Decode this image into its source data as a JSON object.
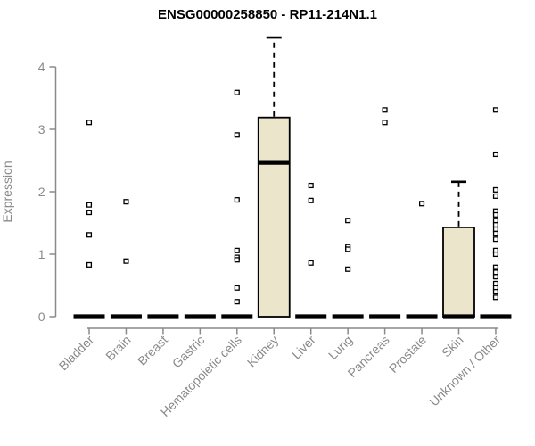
{
  "chart_data": {
    "type": "boxplot",
    "title": "ENSG00000258850 - RP11-214N1.1",
    "ylabel": "Expression",
    "xlabel": "",
    "ylim": [
      0,
      4.5
    ],
    "yticks": [
      0,
      1,
      2,
      3,
      4
    ],
    "grid": false,
    "legend": false,
    "colors": {
      "box_fill": "#EAE5CB",
      "box_border": "#000000",
      "median": "#000000",
      "whisker": "#000000",
      "outlier_fill": "#ffffff",
      "outlier_border": "#000000",
      "axis": "#8a8a8a",
      "title": "#000000"
    },
    "categories": [
      "Bladder",
      "Brain",
      "Breast",
      "Gastric",
      "Hematopoietic cells",
      "Kidney",
      "Liver",
      "Lung",
      "Pancreas",
      "Prostate",
      "Skin",
      "Unknown / Other"
    ],
    "boxes": [
      {
        "category": "Bladder",
        "q1": 0,
        "median": 0,
        "q3": 0,
        "whisker_low": 0,
        "whisker_high": 0,
        "outliers": [
          3.11,
          1.79,
          1.67,
          1.31,
          0.83
        ]
      },
      {
        "category": "Brain",
        "q1": 0,
        "median": 0,
        "q3": 0,
        "whisker_low": 0,
        "whisker_high": 0,
        "outliers": [
          1.84,
          0.89
        ]
      },
      {
        "category": "Breast",
        "q1": 0,
        "median": 0,
        "q3": 0,
        "whisker_low": 0,
        "whisker_high": 0,
        "outliers": []
      },
      {
        "category": "Gastric",
        "q1": 0,
        "median": 0,
        "q3": 0,
        "whisker_low": 0,
        "whisker_high": 0,
        "outliers": []
      },
      {
        "category": "Hematopoietic cells",
        "q1": 0,
        "median": 0,
        "q3": 0,
        "whisker_low": 0,
        "whisker_high": 0,
        "outliers": [
          3.59,
          2.91,
          1.87,
          1.06,
          0.95,
          0.91,
          0.46,
          0.24
        ]
      },
      {
        "category": "Kidney",
        "q1": 0,
        "median": 2.47,
        "q3": 3.19,
        "whisker_low": 0,
        "whisker_high": 4.47,
        "outliers": []
      },
      {
        "category": "Liver",
        "q1": 0,
        "median": 0,
        "q3": 0,
        "whisker_low": 0,
        "whisker_high": 0,
        "outliers": [
          2.1,
          1.86,
          0.86
        ]
      },
      {
        "category": "Lung",
        "q1": 0,
        "median": 0,
        "q3": 0,
        "whisker_low": 0,
        "whisker_high": 0,
        "outliers": [
          1.54,
          1.12,
          1.08,
          0.76
        ]
      },
      {
        "category": "Pancreas",
        "q1": 0,
        "median": 0,
        "q3": 0,
        "whisker_low": 0,
        "whisker_high": 0,
        "outliers": [
          3.31,
          3.11
        ]
      },
      {
        "category": "Prostate",
        "q1": 0,
        "median": 0,
        "q3": 0,
        "whisker_low": 0,
        "whisker_high": 0,
        "outliers": [
          1.81
        ]
      },
      {
        "category": "Skin",
        "q1": 0,
        "median": 0,
        "q3": 1.43,
        "whisker_low": 0,
        "whisker_high": 2.16,
        "outliers": []
      },
      {
        "category": "Unknown / Other",
        "q1": 0,
        "median": 0,
        "q3": 0,
        "whisker_low": 0,
        "whisker_high": 0,
        "outliers": [
          3.31,
          2.6,
          2.03,
          1.93,
          1.69,
          1.63,
          1.54,
          1.47,
          1.4,
          1.33,
          1.24,
          1.06,
          1.0,
          0.79,
          0.71,
          0.64,
          0.53,
          0.46,
          0.4,
          0.31
        ]
      }
    ]
  }
}
